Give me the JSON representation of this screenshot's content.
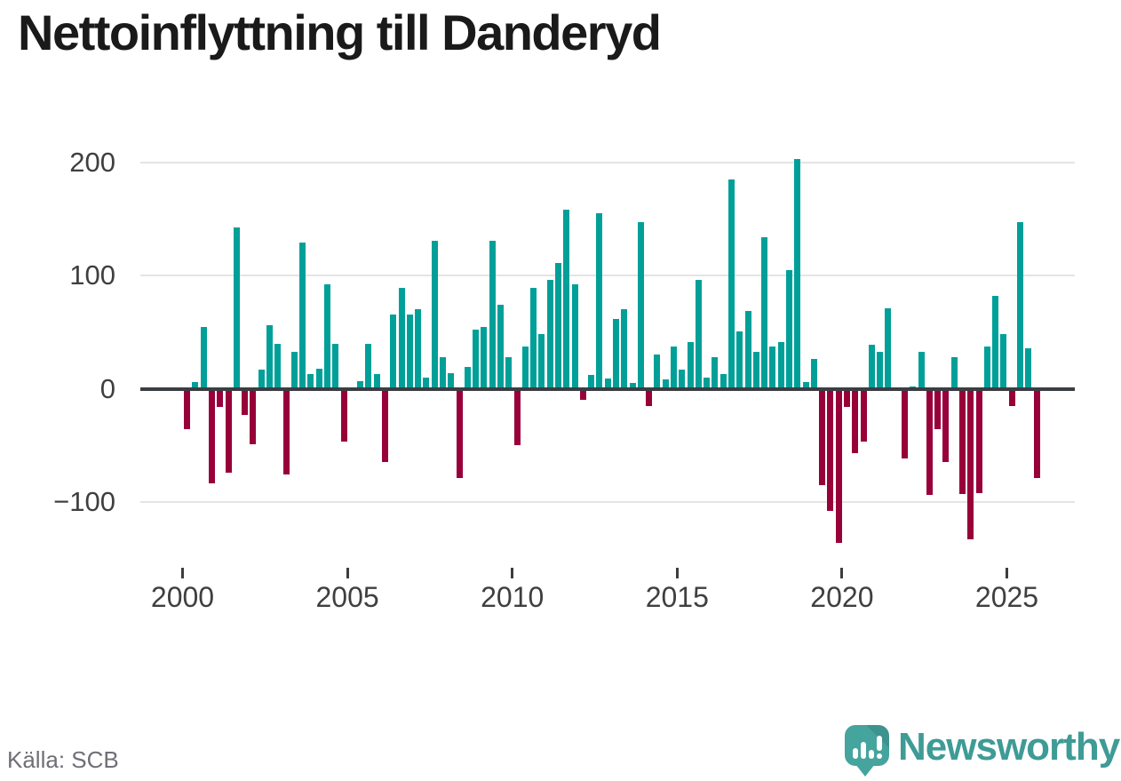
{
  "header": {
    "title": "Nettoinflyttning till Danderyd"
  },
  "footer": {
    "source_label": "Källa: SCB",
    "brand": "Newsworthy"
  },
  "colors": {
    "positive": "#00a099",
    "negative": "#98003a",
    "axis": "#3a3e42",
    "grid": "#e4e4e4",
    "tick_text": "#3f3f3f",
    "muted_text": "#6f6f76",
    "brand_teal": "#3e9b96",
    "title_text": "#1a1a1a"
  },
  "chart_data": {
    "type": "bar",
    "title": "Nettoinflyttning till Danderyd",
    "frequency": "quarterly",
    "start": "2000-Q1",
    "end": "2025-Q4",
    "grid": true,
    "ylim": [
      -145,
      215
    ],
    "yticks": [
      200,
      100,
      0,
      -100
    ],
    "yticklabels": [
      "200",
      "100",
      "0",
      "−100"
    ],
    "xticklabels": [
      "2000",
      "2005",
      "2010",
      "2015",
      "2020",
      "2025"
    ],
    "quarters": [
      "2000-Q1",
      "2000-Q2",
      "2000-Q3",
      "2000-Q4",
      "2001-Q1",
      "2001-Q2",
      "2001-Q3",
      "2001-Q4",
      "2002-Q1",
      "2002-Q2",
      "2002-Q3",
      "2002-Q4",
      "2003-Q1",
      "2003-Q2",
      "2003-Q3",
      "2003-Q4",
      "2004-Q1",
      "2004-Q2",
      "2004-Q3",
      "2004-Q4",
      "2005-Q1",
      "2005-Q2",
      "2005-Q3",
      "2005-Q4",
      "2006-Q1",
      "2006-Q2",
      "2006-Q3",
      "2006-Q4",
      "2007-Q1",
      "2007-Q2",
      "2007-Q3",
      "2007-Q4",
      "2008-Q1",
      "2008-Q2",
      "2008-Q3",
      "2008-Q4",
      "2009-Q1",
      "2009-Q2",
      "2009-Q3",
      "2009-Q4",
      "2010-Q1",
      "2010-Q2",
      "2010-Q3",
      "2010-Q4",
      "2011-Q1",
      "2011-Q2",
      "2011-Q3",
      "2011-Q4",
      "2012-Q1",
      "2012-Q2",
      "2012-Q3",
      "2012-Q4",
      "2013-Q1",
      "2013-Q2",
      "2013-Q3",
      "2013-Q4",
      "2014-Q1",
      "2014-Q2",
      "2014-Q3",
      "2014-Q4",
      "2015-Q1",
      "2015-Q2",
      "2015-Q3",
      "2015-Q4",
      "2016-Q1",
      "2016-Q2",
      "2016-Q3",
      "2016-Q4",
      "2017-Q1",
      "2017-Q2",
      "2017-Q3",
      "2017-Q4",
      "2018-Q1",
      "2018-Q2",
      "2018-Q3",
      "2018-Q4",
      "2019-Q1",
      "2019-Q2",
      "2019-Q3",
      "2019-Q4",
      "2020-Q1",
      "2020-Q2",
      "2020-Q3",
      "2020-Q4",
      "2021-Q1",
      "2021-Q2",
      "2021-Q3",
      "2021-Q4",
      "2022-Q1",
      "2022-Q2",
      "2022-Q3",
      "2022-Q4",
      "2023-Q1",
      "2023-Q2",
      "2023-Q3",
      "2023-Q4",
      "2024-Q1",
      "2024-Q2",
      "2024-Q3",
      "2024-Q4",
      "2025-Q1",
      "2025-Q2",
      "2025-Q3",
      "2025-Q4"
    ],
    "values": [
      -36,
      6,
      55,
      -84,
      -16,
      -74,
      143,
      -23,
      -49,
      17,
      56,
      40,
      -76,
      33,
      129,
      13,
      18,
      92,
      40,
      -47,
      0,
      7,
      40,
      13,
      -65,
      66,
      89,
      66,
      70,
      10,
      131,
      28,
      14,
      -79,
      19,
      52,
      55,
      131,
      74,
      28,
      -50,
      37,
      89,
      48,
      96,
      111,
      158,
      92,
      -10,
      12,
      155,
      9,
      62,
      70,
      5,
      147,
      -15,
      30,
      8,
      37,
      17,
      41,
      96,
      10,
      28,
      13,
      185,
      51,
      69,
      33,
      134,
      37,
      41,
      105,
      203,
      6,
      26,
      -85,
      -108,
      -136,
      -16,
      -57,
      -47,
      39,
      33,
      71,
      0,
      -62,
      2,
      33,
      -94,
      -36,
      -65,
      28,
      -93,
      -133,
      -92,
      37,
      82,
      48,
      -15,
      147,
      36,
      -79
    ]
  }
}
